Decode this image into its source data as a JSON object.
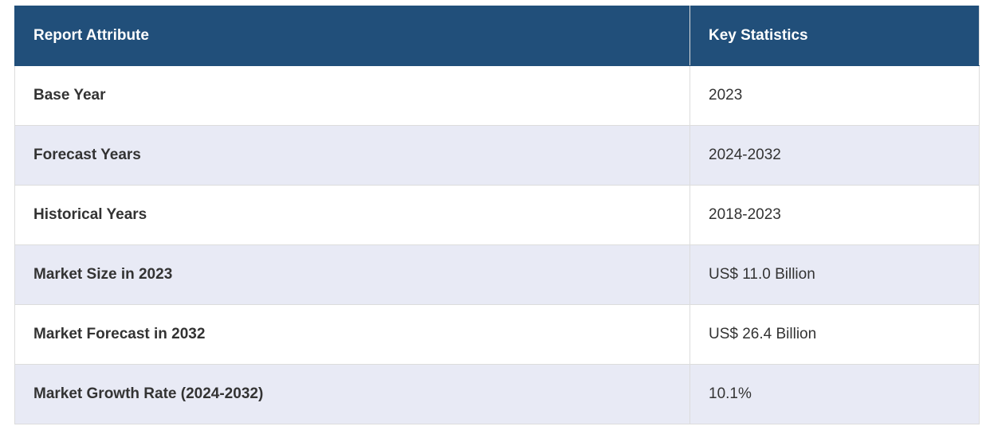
{
  "table": {
    "header": [
      "Report Attribute",
      "Key Statistics"
    ],
    "rows": [
      [
        "Base Year",
        "2023"
      ],
      [
        "Forecast Years",
        "2024-2032"
      ],
      [
        "Historical Years",
        "2018-2023"
      ],
      [
        "Market Size in 2023",
        "US$ 11.0 Billion"
      ],
      [
        "Market Forecast in 2032",
        "US$ 26.4 Billion"
      ],
      [
        "Market Growth Rate (2024-2032)",
        "10.1%"
      ]
    ]
  }
}
